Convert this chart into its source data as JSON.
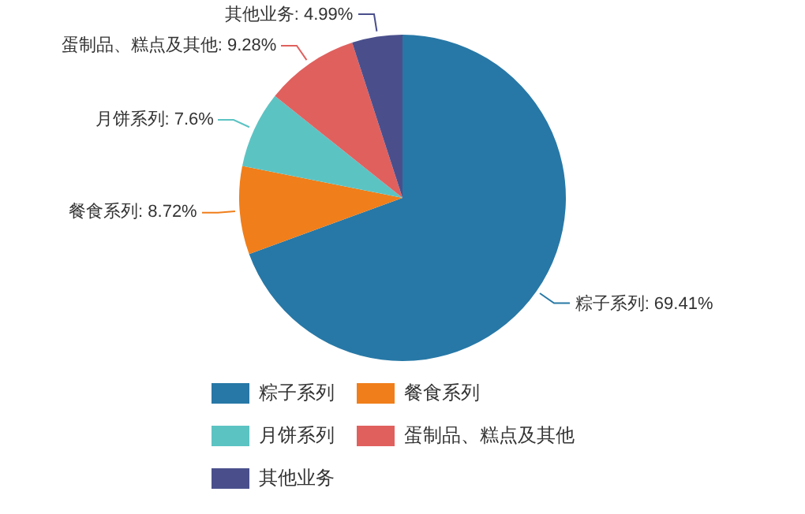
{
  "chart_data": {
    "type": "pie",
    "categories": [
      "粽子系列",
      "餐食系列",
      "月饼系列",
      "蛋制品、糕点及其他",
      "其他业务"
    ],
    "values": [
      69.41,
      8.72,
      7.6,
      9.28,
      4.99
    ],
    "value_labels": [
      "粽子系列: 69.41%",
      "餐食系列: 8.72%",
      "月饼系列: 7.6%",
      "蛋制品、糕点及其他: 9.28%",
      "其他业务: 4.99%"
    ],
    "colors": [
      "#2778a6",
      "#f07e1a",
      "#5cc3c3",
      "#e0605e",
      "#4a4f8c"
    ],
    "legend": "bottom"
  }
}
